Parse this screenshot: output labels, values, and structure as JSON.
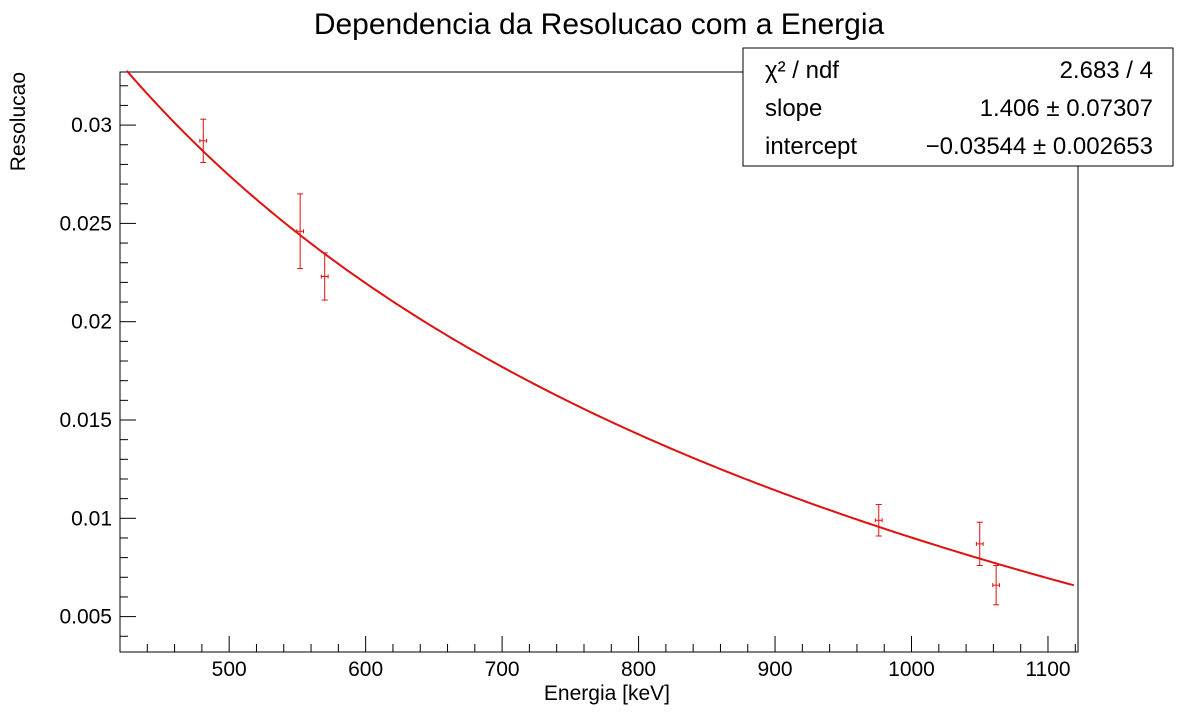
{
  "chart_data": {
    "type": "scatter",
    "title": "Dependencia da Resolucao com a Energia",
    "xlabel": "Energia [keV]",
    "ylabel": "Resolucao",
    "xlim": [
      420,
      1122
    ],
    "ylim": [
      0.0032,
      0.0327
    ],
    "x_ticks": [
      500,
      600,
      700,
      800,
      900,
      1000,
      1100
    ],
    "x_tick_labels": [
      "500",
      "600",
      "700",
      "800",
      "900",
      "1000",
      "1100"
    ],
    "y_ticks": [
      0.005,
      0.01,
      0.015,
      0.02,
      0.025,
      0.03
    ],
    "y_tick_labels": [
      "0.005",
      "0.01",
      "0.015",
      "0.02",
      "0.025",
      "0.03"
    ],
    "grid": false,
    "series": [
      {
        "type": "points_with_errors",
        "color": "#e01010",
        "points": [
          {
            "x": 481,
            "y": 0.0292,
            "xerr": 2.5,
            "yerr": 0.0011
          },
          {
            "x": 552,
            "y": 0.0246,
            "xerr": 2.5,
            "yerr": 0.0019
          },
          {
            "x": 570,
            "y": 0.0223,
            "xerr": 2.5,
            "yerr": 0.0012
          },
          {
            "x": 976,
            "y": 0.0099,
            "xerr": 2.5,
            "yerr": 0.0008
          },
          {
            "x": 1050,
            "y": 0.0087,
            "xerr": 2.5,
            "yerr": 0.0011
          },
          {
            "x": 1062,
            "y": 0.0066,
            "xerr": 2.5,
            "yerr": 0.001
          }
        ]
      },
      {
        "type": "fit",
        "color": "#e01010",
        "model": "slope / sqrt(x) + intercept",
        "slope": 1.406,
        "intercept": -0.03544,
        "x_range": [
          425,
          1119
        ]
      }
    ],
    "stats_box": {
      "placement": "top-right",
      "rows": [
        {
          "label": "χ² / ndf",
          "value": "2.683 / 4"
        },
        {
          "label": "slope",
          "value": "1.406 ± 0.07307"
        },
        {
          "label": "intercept",
          "value": "−0.03544 ± 0.002653"
        }
      ]
    }
  }
}
